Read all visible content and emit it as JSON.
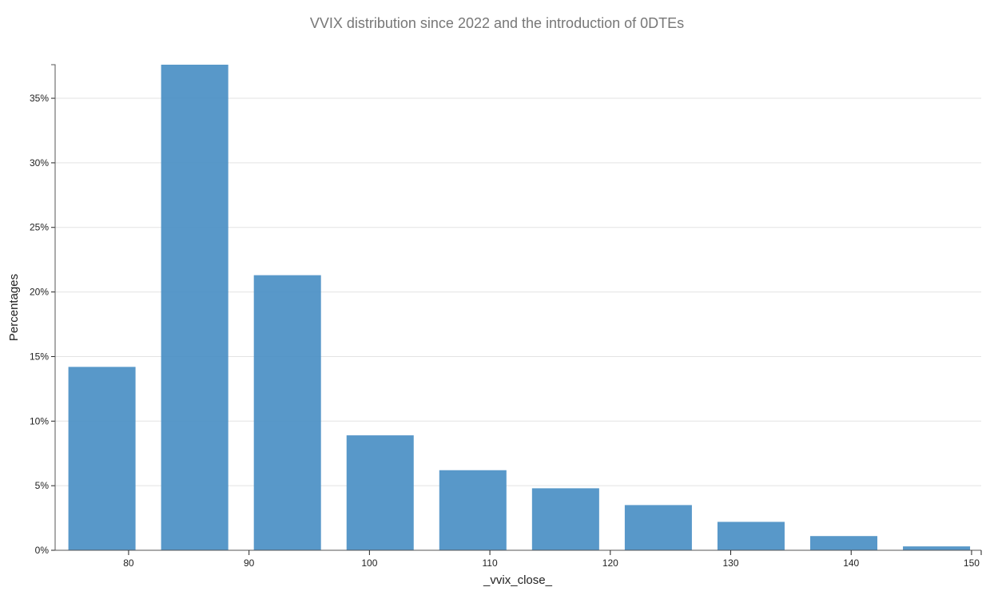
{
  "chart_data": {
    "type": "bar",
    "title": "VVIX distribution since 2022 and the introduction of 0DTEs",
    "xlabel": "_vvix_close_",
    "ylabel": "Percentages",
    "xlim": [
      73.9,
      150.8
    ],
    "ylim": [
      0,
      37.6
    ],
    "x_ticks": [
      80,
      90,
      100,
      110,
      120,
      130,
      140,
      150
    ],
    "y_ticks": [
      0,
      5,
      10,
      15,
      20,
      25,
      30,
      35
    ],
    "y_tick_labels": [
      "0%",
      "5%",
      "10%",
      "15%",
      "20%",
      "25%",
      "30%",
      "35%"
    ],
    "grid": "horizontal",
    "color": "#4a8fc4",
    "bins": [
      {
        "start": 75.0,
        "end": 82.7,
        "value": 14.2
      },
      {
        "start": 82.7,
        "end": 90.4,
        "value": 37.6
      },
      {
        "start": 90.4,
        "end": 98.1,
        "value": 21.3
      },
      {
        "start": 98.1,
        "end": 105.8,
        "value": 8.9
      },
      {
        "start": 105.8,
        "end": 113.5,
        "value": 6.2
      },
      {
        "start": 113.5,
        "end": 121.2,
        "value": 4.8
      },
      {
        "start": 121.2,
        "end": 128.9,
        "value": 3.5
      },
      {
        "start": 128.9,
        "end": 136.6,
        "value": 2.2
      },
      {
        "start": 136.6,
        "end": 144.3,
        "value": 1.1
      },
      {
        "start": 144.3,
        "end": 152.0,
        "value": 0.3
      }
    ]
  }
}
